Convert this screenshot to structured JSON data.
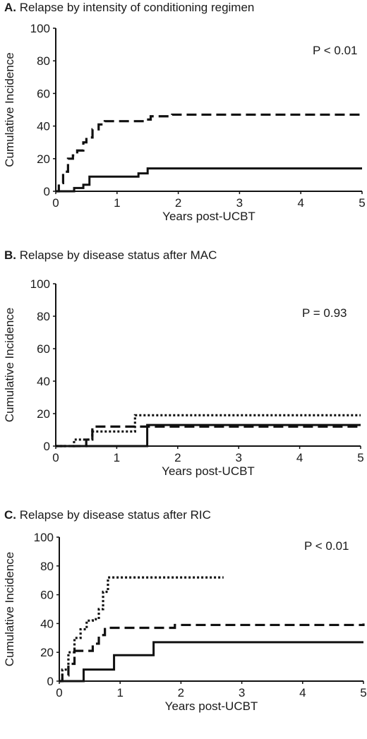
{
  "chart_data": [
    {
      "type": "line",
      "panel_letter": "A.",
      "title": "Relapse by intensity of conditioning regimen",
      "xlabel": "Years post-UCBT",
      "ylabel": "Cumulative Incidence",
      "xlim": [
        0,
        5
      ],
      "ylim": [
        0,
        100
      ],
      "xticks": [
        0,
        1,
        2,
        3,
        4,
        5
      ],
      "yticks": [
        0,
        20,
        40,
        60,
        80,
        100
      ],
      "annotation": "P < 0.01",
      "series": [
        {
          "style": "dashed",
          "color": "#111111",
          "step": true,
          "x": [
            0,
            0.05,
            0.12,
            0.2,
            0.28,
            0.35,
            0.45,
            0.5,
            0.6,
            0.7,
            0.8,
            1.45,
            1.55,
            1.9,
            5
          ],
          "y": [
            0,
            5,
            12,
            20,
            22,
            25,
            30,
            33,
            38,
            41,
            43,
            44,
            46,
            47,
            47
          ]
        },
        {
          "style": "solid",
          "color": "#111111",
          "step": true,
          "x": [
            0,
            0.3,
            0.45,
            0.55,
            1.35,
            1.5,
            5
          ],
          "y": [
            0,
            2,
            4,
            9,
            11,
            14,
            14
          ]
        }
      ]
    },
    {
      "type": "line",
      "panel_letter": "B.",
      "title": "Relapse by disease status after MAC",
      "xlabel": "Years post-UCBT",
      "ylabel": "Cumulative Incidence",
      "xlim": [
        0,
        5
      ],
      "ylim": [
        0,
        100
      ],
      "xticks": [
        0,
        1,
        2,
        3,
        4,
        5
      ],
      "yticks": [
        0,
        20,
        40,
        60,
        80,
        100
      ],
      "annotation": "P = 0.93",
      "series": [
        {
          "style": "solid",
          "color": "#111111",
          "step": true,
          "x": [
            0,
            1.5,
            5
          ],
          "y": [
            0,
            13,
            13
          ]
        },
        {
          "style": "dashed",
          "color": "#111111",
          "step": true,
          "x": [
            0,
            0.5,
            0.6,
            1.3,
            5
          ],
          "y": [
            0,
            4,
            12,
            12,
            12
          ]
        },
        {
          "style": "dotted",
          "color": "#111111",
          "step": true,
          "x": [
            0,
            0.3,
            0.6,
            1.3,
            5
          ],
          "y": [
            0,
            4,
            9,
            19,
            19
          ]
        }
      ]
    },
    {
      "type": "line",
      "panel_letter": "C.",
      "title": "Relapse by disease status after RIC",
      "xlabel": "Years post-UCBT",
      "ylabel": "Cumulative Incidence",
      "xlim": [
        0,
        5
      ],
      "ylim": [
        0,
        100
      ],
      "xticks": [
        0,
        1,
        2,
        3,
        4,
        5
      ],
      "yticks": [
        0,
        20,
        40,
        60,
        80,
        100
      ],
      "annotation": "P < 0.01",
      "series": [
        {
          "style": "dotted",
          "color": "#111111",
          "step": true,
          "x": [
            0,
            0.05,
            0.15,
            0.25,
            0.35,
            0.45,
            0.55,
            0.65,
            0.72,
            0.8,
            2.7
          ],
          "y": [
            0,
            8,
            20,
            30,
            36,
            42,
            43,
            50,
            62,
            72,
            72
          ]
        },
        {
          "style": "dashed",
          "color": "#111111",
          "step": true,
          "x": [
            0,
            0.05,
            0.15,
            0.25,
            0.45,
            0.55,
            0.65,
            0.75,
            1.9,
            5
          ],
          "y": [
            0,
            4,
            12,
            21,
            21,
            26,
            32,
            37,
            39,
            40
          ]
        },
        {
          "style": "solid",
          "color": "#111111",
          "step": true,
          "x": [
            0,
            0.4,
            0.9,
            1.55,
            5
          ],
          "y": [
            0,
            8,
            18,
            27,
            27
          ]
        }
      ]
    }
  ]
}
